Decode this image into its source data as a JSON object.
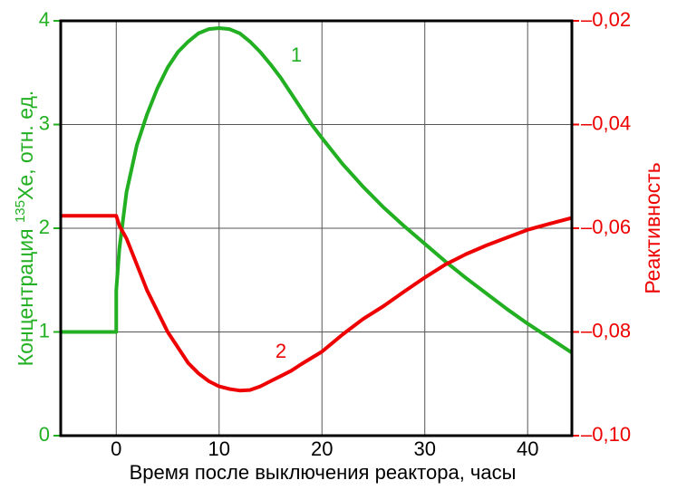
{
  "chart_data": {
    "type": "line",
    "xlabel": "Время после выключения реактора, часы",
    "ylabel": {
      "prefix": "Концентрация ",
      "sup": "135",
      "suffix": "Xe, отн. ед."
    },
    "y2label": "Реактивность",
    "annotations": [
      "1",
      "2"
    ],
    "x": [
      -5.4,
      0,
      0,
      0.3,
      1,
      2,
      3,
      4,
      5,
      6,
      7,
      8,
      9,
      10,
      11,
      12,
      13,
      14,
      15,
      16,
      17,
      18,
      19,
      20,
      22,
      24,
      26,
      28,
      30,
      32,
      34,
      36,
      38,
      40,
      42,
      44.3
    ],
    "series": [
      {
        "name": "1",
        "color": "#22b022",
        "axis": "y",
        "values": [
          1,
          1,
          1.4,
          1.8,
          2.35,
          2.8,
          3.1,
          3.35,
          3.55,
          3.7,
          3.8,
          3.88,
          3.92,
          3.93,
          3.92,
          3.88,
          3.8,
          3.7,
          3.58,
          3.45,
          3.3,
          3.15,
          3.0,
          2.87,
          2.62,
          2.4,
          2.2,
          2.02,
          1.85,
          1.68,
          1.52,
          1.37,
          1.22,
          1.08,
          0.95,
          0.8
        ]
      },
      {
        "name": "2",
        "color": "#ee0000",
        "axis": "y2",
        "values": [
          -0.0576,
          -0.0576,
          -0.0576,
          -0.0595,
          -0.062,
          -0.067,
          -0.072,
          -0.076,
          -0.08,
          -0.083,
          -0.086,
          -0.088,
          -0.0895,
          -0.0905,
          -0.091,
          -0.0913,
          -0.0912,
          -0.0905,
          -0.0895,
          -0.0885,
          -0.0875,
          -0.0862,
          -0.085,
          -0.0838,
          -0.0805,
          -0.0775,
          -0.075,
          -0.0722,
          -0.0695,
          -0.067,
          -0.065,
          -0.0633,
          -0.0618,
          -0.0603,
          -0.0592,
          -0.058
        ]
      }
    ],
    "xlim": [
      -5.4,
      44.3
    ],
    "xticks": [
      0,
      10,
      20,
      30,
      40
    ],
    "ylim": [
      0,
      4
    ],
    "yticks": [
      0,
      1,
      2,
      3,
      4
    ],
    "y2lim": [
      -0.1,
      -0.02
    ],
    "y2ticks": [
      {
        "value": -0.1,
        "label": "–0,10"
      },
      {
        "value": -0.08,
        "label": "–0,08"
      },
      {
        "value": -0.06,
        "label": "–0,06"
      },
      {
        "value": -0.04,
        "label": "–0,04"
      },
      {
        "value": -0.02,
        "label": "–0,02"
      }
    ],
    "grid": true
  }
}
